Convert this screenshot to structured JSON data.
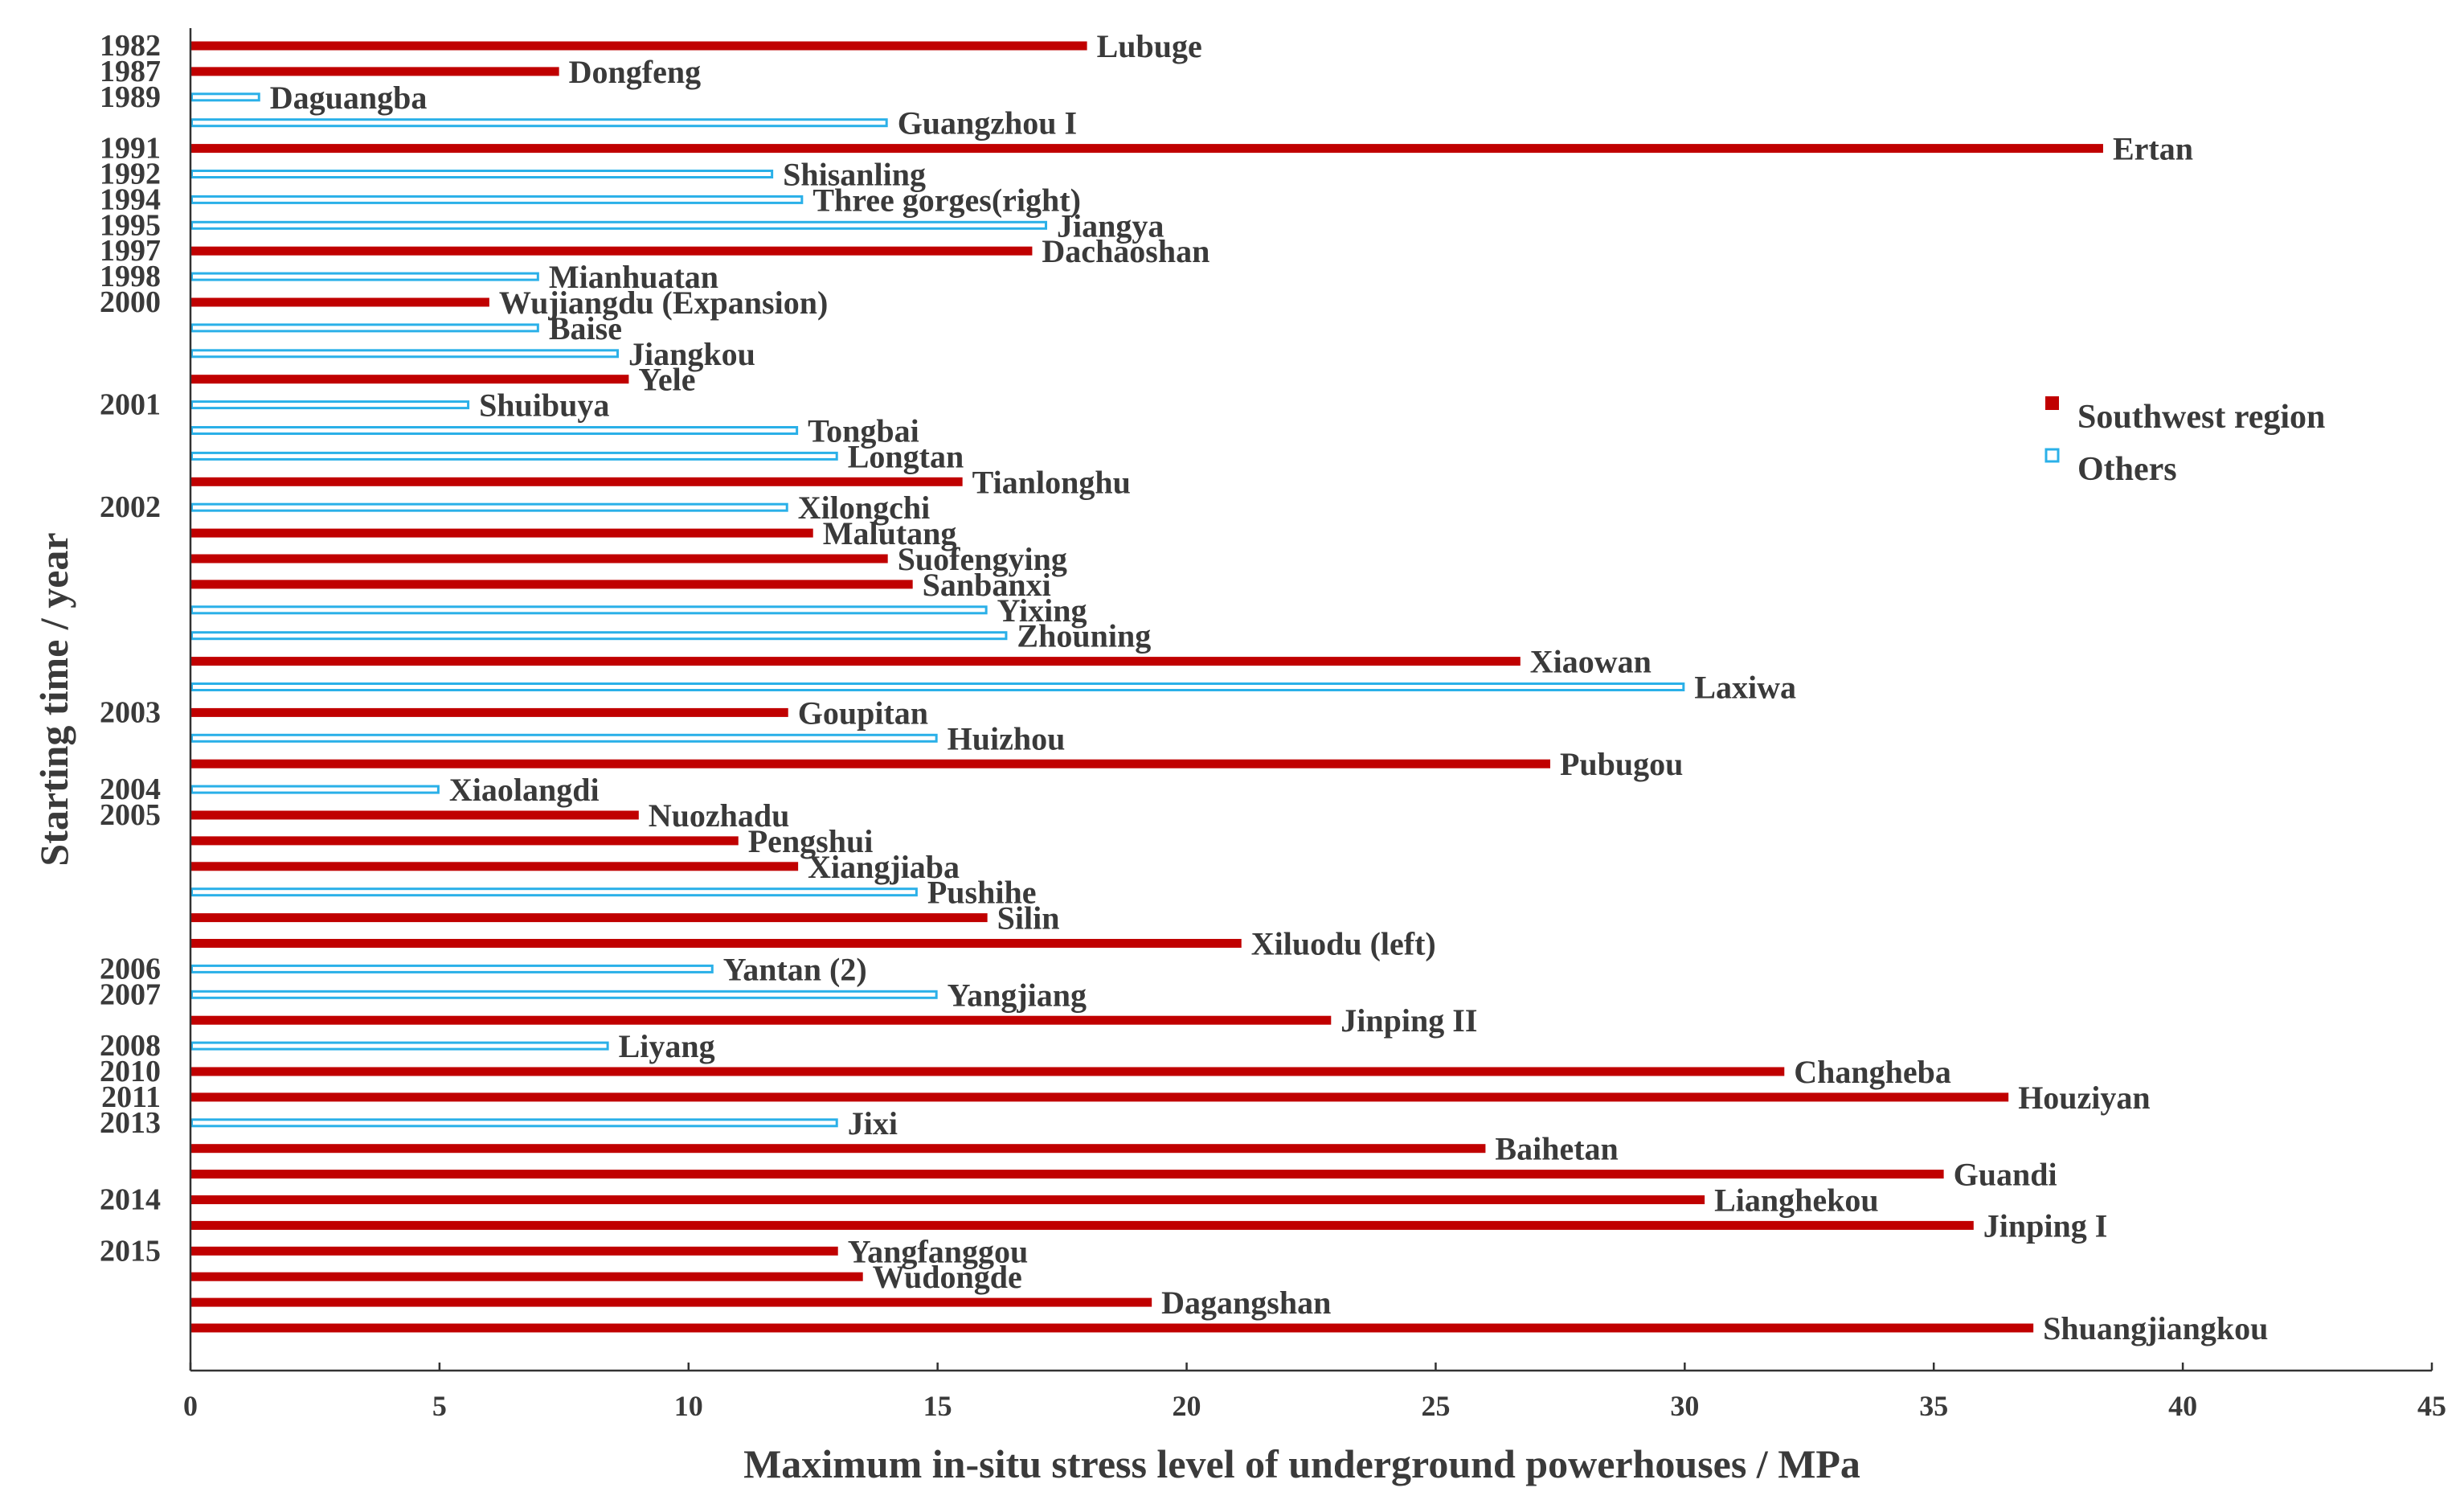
{
  "chart_data": {
    "type": "bar",
    "orientation": "horizontal",
    "xlabel": "Maximum in-situ stress level of underground powerhouses / MPa",
    "ylabel": "Starting time / year",
    "xlim": [
      0,
      45
    ],
    "xticks": [
      0,
      5,
      10,
      15,
      20,
      25,
      30,
      35,
      40,
      45
    ],
    "grid": false,
    "legend_position": "right",
    "legend": [
      {
        "key": "southwest",
        "label": "Southwest region",
        "color": "#c00000",
        "style": "filled"
      },
      {
        "key": "others",
        "label": "Others",
        "color": "#2ab0e8",
        "style": "outline"
      }
    ],
    "bars": [
      {
        "name": "Lubuge",
        "value": 18.0,
        "group": "southwest",
        "year": "1982"
      },
      {
        "name": "Dongfeng",
        "value": 7.4,
        "group": "southwest",
        "year": "1987"
      },
      {
        "name": "Daguangba",
        "value": 1.4,
        "group": "others",
        "year": "1989"
      },
      {
        "name": "Guangzhou I",
        "value": 14.0,
        "group": "others",
        "year": ""
      },
      {
        "name": "Ertan",
        "value": 38.4,
        "group": "southwest",
        "year": "1991"
      },
      {
        "name": "Shisanling",
        "value": 11.7,
        "group": "others",
        "year": "1992"
      },
      {
        "name": "Three gorges(right)",
        "value": 12.3,
        "group": "others",
        "year": "1994"
      },
      {
        "name": "Jiangya",
        "value": 17.2,
        "group": "others",
        "year": "1995"
      },
      {
        "name": "Dachaoshan",
        "value": 16.9,
        "group": "southwest",
        "year": "1997"
      },
      {
        "name": "Mianhuatan",
        "value": 7.0,
        "group": "others",
        "year": "1998"
      },
      {
        "name": "Wujiangdu (Expansion)",
        "value": 6.0,
        "group": "southwest",
        "year": "2000"
      },
      {
        "name": "Baise",
        "value": 7.0,
        "group": "others",
        "year": ""
      },
      {
        "name": "Jiangkou",
        "value": 8.6,
        "group": "others",
        "year": ""
      },
      {
        "name": "Yele",
        "value": 8.8,
        "group": "southwest",
        "year": ""
      },
      {
        "name": "Shuibuya",
        "value": 5.6,
        "group": "others",
        "year": "2001"
      },
      {
        "name": "Tongbai",
        "value": 12.2,
        "group": "others",
        "year": ""
      },
      {
        "name": "Longtan",
        "value": 13.0,
        "group": "others",
        "year": ""
      },
      {
        "name": "Tianlonghu",
        "value": 15.5,
        "group": "southwest",
        "year": ""
      },
      {
        "name": "Xilongchi",
        "value": 12.0,
        "group": "others",
        "year": "2002"
      },
      {
        "name": "Malutang",
        "value": 12.5,
        "group": "southwest",
        "year": ""
      },
      {
        "name": "Suofengying",
        "value": 14.0,
        "group": "southwest",
        "year": ""
      },
      {
        "name": "Sanbanxi",
        "value": 14.5,
        "group": "southwest",
        "year": ""
      },
      {
        "name": "Yixing",
        "value": 16.0,
        "group": "others",
        "year": ""
      },
      {
        "name": "Zhouning",
        "value": 16.4,
        "group": "others",
        "year": ""
      },
      {
        "name": "Xiaowan",
        "value": 26.7,
        "group": "southwest",
        "year": ""
      },
      {
        "name": "Laxiwa",
        "value": 30.0,
        "group": "others",
        "year": ""
      },
      {
        "name": "Goupitan",
        "value": 12.0,
        "group": "southwest",
        "year": "2003"
      },
      {
        "name": "Huizhou",
        "value": 15.0,
        "group": "others",
        "year": ""
      },
      {
        "name": "Pubugou",
        "value": 27.3,
        "group": "southwest",
        "year": ""
      },
      {
        "name": "Xiaolangdi",
        "value": 5.0,
        "group": "others",
        "year": "2004"
      },
      {
        "name": "Nuozhadu",
        "value": 9.0,
        "group": "southwest",
        "year": "2005"
      },
      {
        "name": "Pengshui",
        "value": 11.0,
        "group": "southwest",
        "year": ""
      },
      {
        "name": "Xiangjiaba",
        "value": 12.2,
        "group": "southwest",
        "year": ""
      },
      {
        "name": "Pushihe",
        "value": 14.6,
        "group": "others",
        "year": ""
      },
      {
        "name": "Silin",
        "value": 16.0,
        "group": "southwest",
        "year": ""
      },
      {
        "name": "Xiluodu (left)",
        "value": 21.1,
        "group": "southwest",
        "year": ""
      },
      {
        "name": "Yantan (2)",
        "value": 10.5,
        "group": "others",
        "year": "2006"
      },
      {
        "name": "Yangjiang",
        "value": 15.0,
        "group": "others",
        "year": "2007"
      },
      {
        "name": "Jinping II",
        "value": 22.9,
        "group": "southwest",
        "year": ""
      },
      {
        "name": "Liyang",
        "value": 8.4,
        "group": "others",
        "year": "2008"
      },
      {
        "name": "Changheba",
        "value": 32.0,
        "group": "southwest",
        "year": "2010"
      },
      {
        "name": "Houziyan",
        "value": 36.5,
        "group": "southwest",
        "year": "2011"
      },
      {
        "name": "Jixi",
        "value": 13.0,
        "group": "others",
        "year": "2013"
      },
      {
        "name": "Baihetan",
        "value": 26.0,
        "group": "southwest",
        "year": ""
      },
      {
        "name": "Guandi",
        "value": 35.2,
        "group": "southwest",
        "year": ""
      },
      {
        "name": "Lianghekou",
        "value": 30.4,
        "group": "southwest",
        "year": "2014"
      },
      {
        "name": "Jinping I",
        "value": 35.8,
        "group": "southwest",
        "year": ""
      },
      {
        "name": "Yangfanggou",
        "value": 13.0,
        "group": "southwest",
        "year": "2015"
      },
      {
        "name": "Wudongde",
        "value": 13.5,
        "group": "southwest",
        "year": ""
      },
      {
        "name": "Dagangshan",
        "value": 19.3,
        "group": "southwest",
        "year": ""
      },
      {
        "name": "Shuangjiangkou",
        "value": 37.0,
        "group": "southwest",
        "year": ""
      }
    ]
  }
}
